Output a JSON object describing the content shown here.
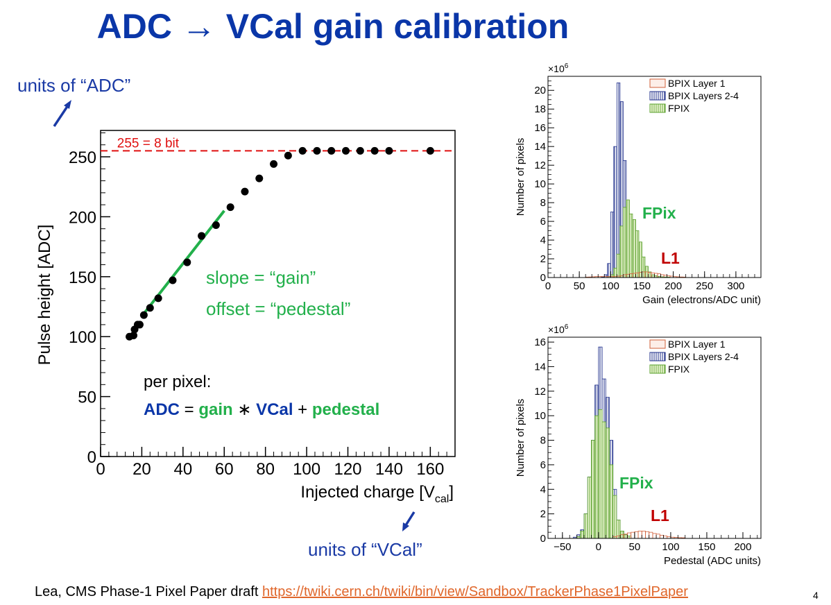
{
  "slide": {
    "title": "ADC → VCal gain calibration",
    "note_adc": "units of “ADC”",
    "note_vcal": "units of “VCal”",
    "footer_text": "Lea, CMS Phase-1 Pixel Paper draft ",
    "footer_link": "https://twiki.cern.ch/twiki/bin/view/Sandbox/TrackerPhase1PixelPaper",
    "page_number": "4"
  },
  "colors": {
    "title_blue": "#0a36a8",
    "note_blue": "#1a3aa5",
    "fit_green": "#22b04b",
    "saturation_red": "#e01010",
    "l1_red": "#c00000",
    "bpix_l1": "#d0603a",
    "bpix_l24": "#1c2d8a",
    "fpix": "#5aa02c"
  },
  "chart_data": [
    {
      "type": "scatter",
      "id": "pulse-height-vs-vcal",
      "xlabel": "Injected charge [V",
      "xlabel_sub": "cal",
      "xlabel_end": "]",
      "ylabel": "Pulse height [ADC]",
      "xlim": [
        0,
        172
      ],
      "ylim": [
        0,
        272
      ],
      "xticks": [
        0,
        20,
        40,
        60,
        80,
        100,
        120,
        140,
        160
      ],
      "yticks": [
        0,
        50,
        100,
        150,
        200,
        250
      ],
      "points": [
        [
          14,
          100
        ],
        [
          16,
          101
        ],
        [
          16.5,
          106
        ],
        [
          18,
          110
        ],
        [
          19,
          110
        ],
        [
          21,
          118
        ],
        [
          24,
          124
        ],
        [
          28,
          132
        ],
        [
          35,
          147
        ],
        [
          42,
          162
        ],
        [
          49,
          184
        ],
        [
          56,
          193
        ],
        [
          63,
          208
        ],
        [
          70,
          221
        ],
        [
          77,
          232
        ],
        [
          84,
          244
        ],
        [
          91,
          251
        ],
        [
          98,
          255
        ],
        [
          105,
          255
        ],
        [
          112,
          255
        ],
        [
          119,
          255
        ],
        [
          126,
          255
        ],
        [
          133,
          255
        ],
        [
          140,
          255
        ],
        [
          160,
          255
        ]
      ],
      "fit_line": {
        "x": [
          20,
          60
        ],
        "y": [
          117,
          205
        ]
      },
      "saturation_line": {
        "y": 255,
        "label": "255 = 8 bit"
      },
      "annotation_slope": "slope = “gain”",
      "annotation_offset": "offset = “pedestal”",
      "formula_intro": "per pixel:",
      "formula": {
        "adc": "ADC",
        "eq": " = ",
        "gain": "gain",
        "times": " ∗ ",
        "vcal": "VCal",
        "plus": " + ",
        "pedestal": "pedestal"
      }
    },
    {
      "type": "histogram",
      "id": "gain-distribution",
      "xlabel": "Gain (electrons/ADC unit)",
      "ylabel": "Number of pixels",
      "y_multiplier": "×10",
      "y_multiplier_exp": "6",
      "xlim": [
        0,
        340
      ],
      "ylim": [
        0,
        21.5
      ],
      "xticks": [
        0,
        50,
        100,
        150,
        200,
        250,
        300
      ],
      "yticks": [
        0,
        2,
        4,
        6,
        8,
        10,
        12,
        14,
        16,
        18,
        20
      ],
      "bin_width": 5,
      "legend": [
        "BPIX Layer 1",
        "BPIX Layers 2-4",
        "FPIX"
      ],
      "label_fpix": "FPix",
      "label_l1": "L1",
      "series": [
        {
          "name": "BPIX Layer 1",
          "start": 60,
          "values": [
            0.05,
            0.06,
            0.08,
            0.1,
            0.12,
            0.12,
            0.12,
            0.1,
            0.1,
            0.12,
            0.15,
            0.2,
            0.3,
            0.35,
            0.4,
            0.45,
            0.5,
            0.55,
            0.6,
            0.6,
            0.55,
            0.5,
            0.45,
            0.4,
            0.3,
            0.25,
            0.2,
            0.15,
            0.1,
            0.08,
            0.06,
            0.05
          ]
        },
        {
          "name": "BPIX Layers 2-4",
          "start": 85,
          "values": [
            0.05,
            0.3,
            1.5,
            7.0,
            14.0,
            20.8,
            18.8,
            12.5,
            6.5,
            2.5,
            1.0,
            0.35,
            0.2,
            0.1,
            0.05
          ]
        },
        {
          "name": "FPIX",
          "start": 95,
          "values": [
            0.1,
            0.3,
            1.0,
            2.5,
            5.5,
            7.5,
            8.3,
            6.8,
            6.2,
            5.0,
            3.8,
            2.2,
            1.2,
            0.6,
            0.3,
            0.2,
            0.12,
            0.08,
            0.06,
            0.05
          ]
        }
      ]
    },
    {
      "type": "histogram",
      "id": "pedestal-distribution",
      "xlabel": "Pedestal (ADC units)",
      "ylabel": "Number of pixels",
      "y_multiplier": "×10",
      "y_multiplier_exp": "6",
      "xlim": [
        -70,
        225
      ],
      "ylim": [
        0,
        16.4
      ],
      "xticks": [
        -50,
        0,
        50,
        100,
        150,
        200
      ],
      "yticks": [
        0,
        2,
        4,
        6,
        8,
        10,
        12,
        14,
        16
      ],
      "bin_width": 5,
      "legend": [
        "BPIX Layer 1",
        "BPIX Layers 2-4",
        "FPIX"
      ],
      "label_fpix": "FPix",
      "label_l1": "L1",
      "series": [
        {
          "name": "BPIX Layer 1",
          "start": 20,
          "values": [
            0.15,
            0.2,
            0.3,
            0.35,
            0.45,
            0.5,
            0.55,
            0.6,
            0.6,
            0.55,
            0.5,
            0.4,
            0.35,
            0.25,
            0.2,
            0.15,
            0.1,
            0.08,
            0.06,
            0.05
          ]
        },
        {
          "name": "BPIX Layers 2-4",
          "start": -35,
          "values": [
            0.1,
            0.3,
            0.7,
            2.0,
            5.0,
            8.0,
            12.5,
            15.6,
            13.0,
            11.5,
            8.0,
            4.0,
            1.5,
            0.6,
            0.3,
            0.15
          ]
        },
        {
          "name": "FPIX",
          "start": -30,
          "values": [
            0.15,
            0.6,
            2.0,
            5.0,
            8.0,
            10.0,
            10.5,
            9.5,
            9.0,
            6.0,
            3.5,
            1.5,
            0.6,
            0.3,
            0.2
          ]
        }
      ]
    }
  ]
}
